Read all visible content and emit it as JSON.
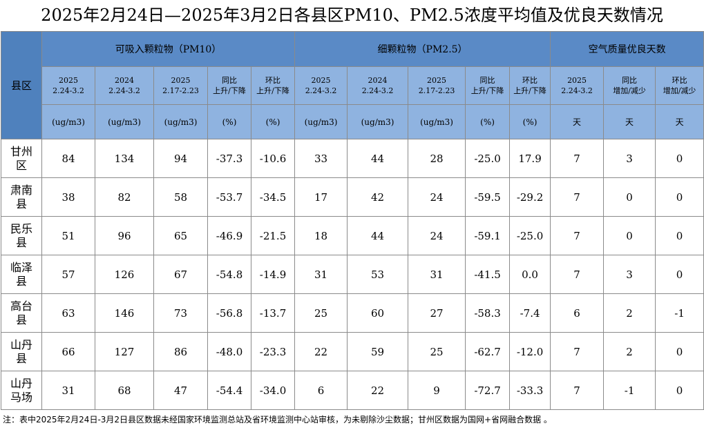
{
  "title": "2025年2月24日—2025年3月2日各县区PM10、PM2.5浓度平均值及优良天数情况",
  "header": {
    "region": "县区",
    "groups": [
      "可吸入颗粒物（PM10）",
      "细颗粒物（PM2.5）",
      "空气质量优良天数"
    ],
    "sub_headers": [
      [
        "2025",
        "2.24-3.2"
      ],
      [
        "2024",
        "2.24-3.2"
      ],
      [
        "2025",
        "2.17-2.23"
      ],
      [
        "同比",
        "上升/下降"
      ],
      [
        "环比",
        "上升/下降"
      ],
      [
        "2025",
        "2.24-3.2"
      ],
      [
        "2024",
        "2.24-3.2"
      ],
      [
        "2025",
        "2.17-2.23"
      ],
      [
        "同比",
        "上升/下降"
      ],
      [
        "环比",
        "上升/下降"
      ],
      [
        "2025",
        "2.24-3.2"
      ],
      [
        "同比",
        "增加/减少"
      ],
      [
        "环比",
        "增加/减少"
      ]
    ],
    "units": [
      "(ug/m3)",
      "(ug/m3)",
      "(ug/m3)",
      "(%)",
      "(%)",
      "(ug/m3)",
      "(ug/m3)",
      "(ug/m3)",
      "(%)",
      "(%)",
      "天",
      "天",
      "天"
    ]
  },
  "table": {
    "rows": [
      {
        "name": "甘州区",
        "values": [
          "84",
          "134",
          "94",
          "-37.3",
          "-10.6",
          "33",
          "44",
          "28",
          "-25.0",
          "17.9",
          "7",
          "3",
          "0"
        ]
      },
      {
        "name": "肃南县",
        "values": [
          "38",
          "82",
          "58",
          "-53.7",
          "-34.5",
          "17",
          "42",
          "24",
          "-59.5",
          "-29.2",
          "7",
          "0",
          "0"
        ]
      },
      {
        "name": "民乐县",
        "values": [
          "51",
          "96",
          "65",
          "-46.9",
          "-21.5",
          "18",
          "44",
          "24",
          "-59.1",
          "-25.0",
          "7",
          "0",
          "0"
        ]
      },
      {
        "name": "临泽县",
        "values": [
          "57",
          "126",
          "67",
          "-54.8",
          "-14.9",
          "31",
          "53",
          "31",
          "-41.5",
          "0.0",
          "7",
          "3",
          "0"
        ]
      },
      {
        "name": "高台县",
        "values": [
          "63",
          "146",
          "73",
          "-56.8",
          "-13.7",
          "25",
          "60",
          "27",
          "-58.3",
          "-7.4",
          "6",
          "2",
          "-1"
        ]
      },
      {
        "name": "山丹县",
        "values": [
          "66",
          "127",
          "86",
          "-48.0",
          "-23.3",
          "22",
          "59",
          "25",
          "-62.7",
          "-12.0",
          "7",
          "2",
          "0"
        ]
      },
      {
        "name": "山丹马场",
        "values": [
          "31",
          "68",
          "47",
          "-54.4",
          "-34.0",
          "6",
          "22",
          "9",
          "-72.7",
          "-33.3",
          "7",
          "-1",
          "0"
        ]
      }
    ]
  },
  "note": "注：表中2025年2月24日-3月2日县区数据未经国家环境监测总站及省环境监测中心站审核，为未剔除沙尘数据；甘州区数据为国网+省网融合数据 。"
}
